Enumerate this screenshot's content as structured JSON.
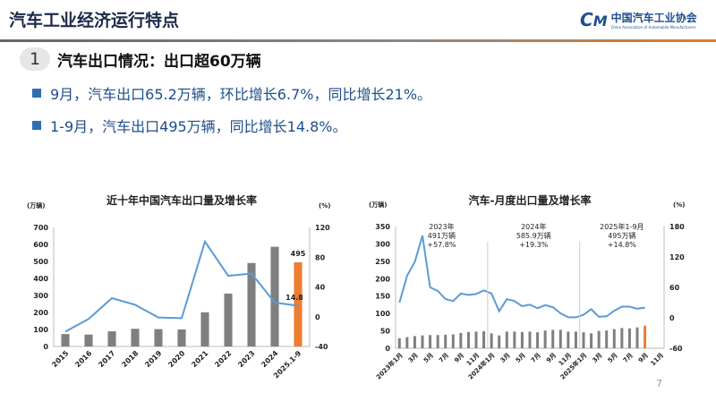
{
  "header": {
    "title": "汽车工业经济运行特点",
    "logo_cn": "中国汽车工业协会",
    "logo_en": "China Association of Automobile Manufacturers",
    "logo_mark": "CM"
  },
  "section": {
    "number": "1",
    "title": "汽车出口情况：出口超60万辆"
  },
  "bullets": [
    "9月，汽车出口65.2万辆，环比增长6.7%，同比增长21%。",
    "1-9月，汽车出口495万辆，同比增长14.8%。"
  ],
  "page_number": "7",
  "colors": {
    "bar": "#7f7f7f",
    "highlight": "#ed7d31",
    "line": "#5b9bd5",
    "accent": "#2c6fb5"
  },
  "chart_data": [
    {
      "type": "bar+line",
      "title": "近十年中国汽车出口量及增长率",
      "ylabel": "(万辆)",
      "y2label": "(%)",
      "ylim": [
        0,
        700
      ],
      "y2lim": [
        -40,
        120
      ],
      "yticks": [
        "0",
        "100",
        "200",
        "300",
        "400",
        "500",
        "600",
        "700"
      ],
      "y2ticks": [
        "-40",
        "0",
        "40",
        "80",
        "120"
      ],
      "categories": [
        "2015",
        "2016",
        "2017",
        "2018",
        "2019",
        "2020",
        "2021",
        "2022",
        "2023",
        "2024",
        "2025.1-9"
      ],
      "bars": [
        73,
        70,
        89,
        104,
        102,
        100,
        201,
        311,
        491,
        586,
        495
      ],
      "growth": [
        -20,
        -3,
        25,
        16,
        -1,
        -2,
        101,
        55,
        58,
        19,
        14.8
      ],
      "labels": {
        "bar_last": "495",
        "growth_last": "14.8"
      }
    },
    {
      "type": "bar+line",
      "title": "汽车-月度出口量及增长率",
      "ylabel": "(万辆)",
      "y2label": "(%)",
      "ylim": [
        0,
        350
      ],
      "y2lim": [
        -60,
        180
      ],
      "yticks": [
        "0",
        "50",
        "100",
        "150",
        "200",
        "250",
        "300",
        "350"
      ],
      "y2ticks": [
        "-60",
        "0",
        "60",
        "120",
        "180"
      ],
      "xticks": [
        "2023年1月",
        "3月",
        "5月",
        "7月",
        "9月",
        "11月",
        "2024年1月",
        "3月",
        "5月",
        "7月",
        "9月",
        "11月",
        "2025年1月",
        "3月",
        "5月",
        "7月",
        "9月",
        "11月"
      ],
      "bars": [
        29,
        32,
        35,
        37,
        38,
        38,
        39,
        40,
        44,
        47,
        48,
        49,
        43,
        37,
        48,
        48,
        47,
        48,
        46,
        51,
        53,
        53,
        48,
        48,
        46,
        43,
        50,
        51,
        55,
        58,
        57,
        60,
        65
      ],
      "growth": [
        30,
        83,
        110,
        162,
        60,
        53,
        37,
        33,
        48,
        45,
        47,
        54,
        48,
        13,
        37,
        33,
        23,
        26,
        19,
        25,
        21,
        9,
        1,
        1,
        6,
        17,
        2,
        3,
        14,
        22,
        22,
        18,
        20
      ],
      "annotations": [
        [
          "2023年",
          "491万辆",
          "+57.8%"
        ],
        [
          "2024年",
          "585.9万辆",
          "+19.3%"
        ],
        [
          "2025年1-9月",
          "495万辆",
          "+14.8%"
        ]
      ]
    }
  ]
}
